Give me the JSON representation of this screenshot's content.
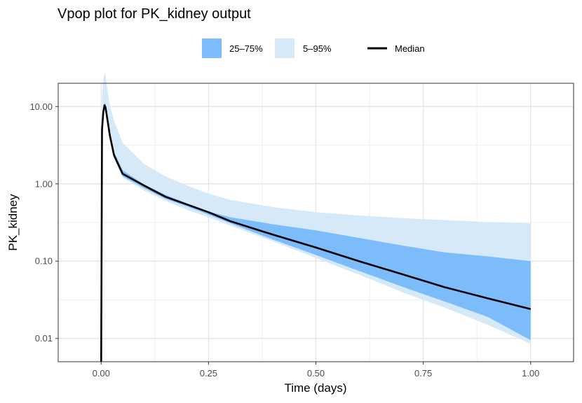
{
  "chart_data": {
    "type": "area",
    "title": "Vpop plot for PK_kidney output",
    "xlabel": "Time (days)",
    "ylabel": "PK_kidney",
    "xlim": [
      -0.1,
      1.1
    ],
    "ylim": [
      0.005,
      20
    ],
    "y_scale": "log10",
    "x_ticks": [
      0.0,
      0.25,
      0.5,
      0.75,
      1.0
    ],
    "x_tick_labels": [
      "0.00",
      "0.25",
      "0.50",
      "0.75",
      "1.00"
    ],
    "y_ticks": [
      0.01,
      0.1,
      1,
      10
    ],
    "y_tick_labels": [
      "0.01",
      "0.10",
      "1.00",
      "10.00"
    ],
    "grid": true,
    "legend_position": "top",
    "x": [
      0.0,
      0.002,
      0.005,
      0.008,
      0.01,
      0.015,
      0.02,
      0.03,
      0.05,
      0.1,
      0.15,
      0.2,
      0.25,
      0.3,
      0.4,
      0.5,
      0.6,
      0.7,
      0.8,
      0.9,
      1.0
    ],
    "series": [
      {
        "name": "5–95%",
        "color": "#d6e9f8",
        "lower": [
          0.005,
          3.5,
          7.0,
          8.8,
          8.5,
          5.8,
          3.8,
          2.1,
          1.2,
          0.82,
          0.6,
          0.46,
          0.37,
          0.29,
          0.18,
          0.11,
          0.067,
          0.04,
          0.025,
          0.015,
          0.0085
        ],
        "upper": [
          0.005,
          14,
          22,
          28,
          25,
          16,
          10.5,
          6.5,
          3.4,
          1.8,
          1.25,
          0.95,
          0.75,
          0.62,
          0.5,
          0.43,
          0.39,
          0.36,
          0.34,
          0.32,
          0.31
        ]
      },
      {
        "name": "25–75%",
        "color": "#7dbcfa",
        "lower": [
          0.005,
          4.5,
          7.8,
          9.5,
          9.0,
          6.2,
          4.0,
          2.2,
          1.25,
          0.88,
          0.64,
          0.51,
          0.4,
          0.31,
          0.19,
          0.12,
          0.075,
          0.047,
          0.03,
          0.019,
          0.0095
        ],
        "upper": [
          0.005,
          5.8,
          9.5,
          11.2,
          10.8,
          7.2,
          4.7,
          2.6,
          1.5,
          0.98,
          0.72,
          0.56,
          0.44,
          0.37,
          0.3,
          0.25,
          0.2,
          0.16,
          0.13,
          0.115,
          0.1
        ]
      },
      {
        "name": "Median",
        "color": "#000000",
        "values": [
          0.005,
          5.0,
          8.5,
          10.4,
          9.8,
          6.6,
          4.3,
          2.35,
          1.35,
          0.95,
          0.68,
          0.54,
          0.43,
          0.33,
          0.22,
          0.15,
          0.1,
          0.068,
          0.046,
          0.033,
          0.024
        ]
      }
    ]
  }
}
